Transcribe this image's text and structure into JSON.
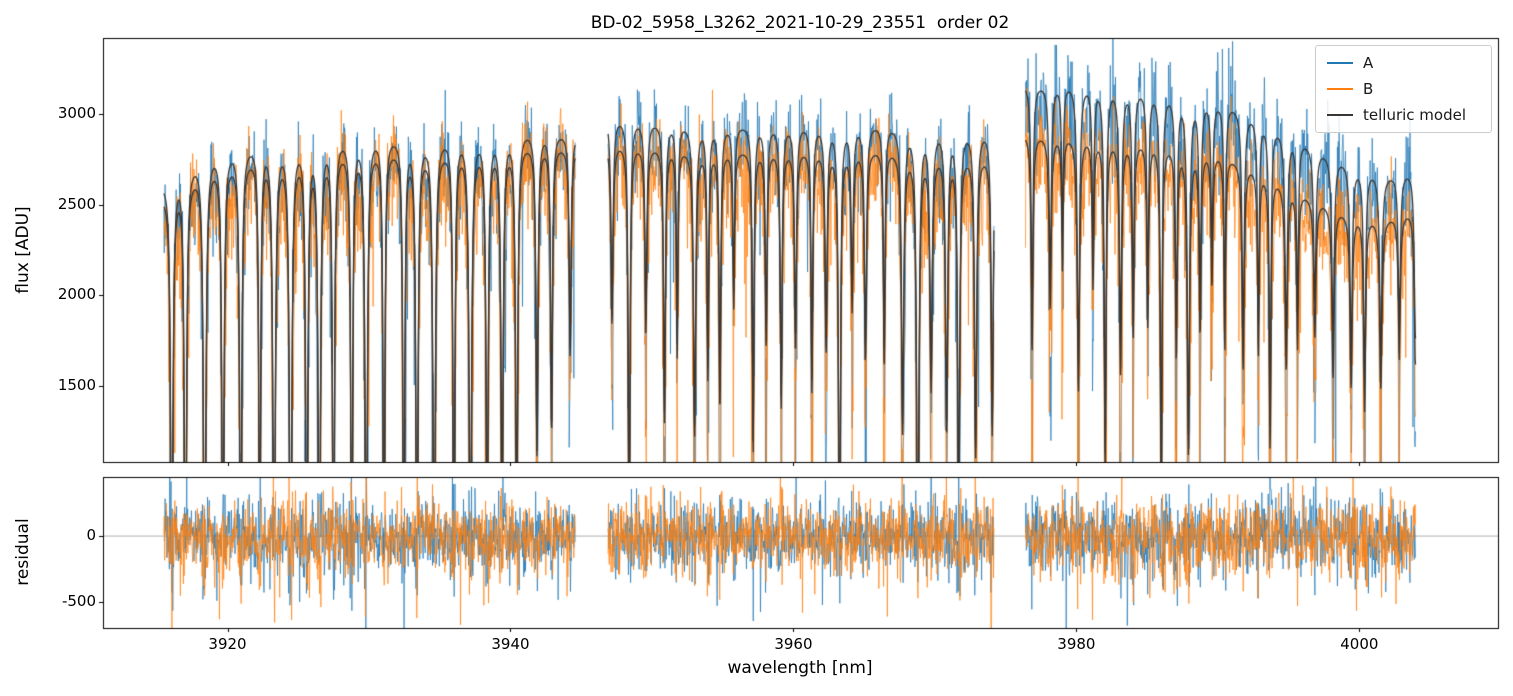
{
  "figure": {
    "background": "#ffffff"
  },
  "chart_data": {
    "type": "line",
    "title": "BD-02_5958_L3262_2021-10-29_23551  order 02",
    "xlabel": "wavelength [nm]",
    "xlim": [
      3911.2,
      4009.8
    ],
    "xticks": [
      3920,
      3940,
      3960,
      3980,
      4000
    ],
    "legend": {
      "position": "upper right",
      "entries": [
        {
          "label": "A",
          "color": "#1f77b4"
        },
        {
          "label": "B",
          "color": "#ff7f0e"
        },
        {
          "label": "telluric model",
          "color": "#3a3633"
        }
      ]
    },
    "panels": [
      {
        "name": "flux",
        "ylabel": "flux [ADU]",
        "ylim": [
          1080,
          3420
        ],
        "yticks": [
          1500,
          2000,
          2500,
          3000
        ]
      },
      {
        "name": "residual",
        "ylabel": "residual",
        "ylim": [
          -700,
          450
        ],
        "yticks": [
          -500,
          0
        ],
        "zero_line": true
      }
    ],
    "series": [
      {
        "name": "A",
        "kind": "noisy observed spectrum",
        "color": "#1f77b4"
      },
      {
        "name": "B",
        "kind": "noisy observed spectrum",
        "color": "#ff7f0e"
      },
      {
        "name": "telluric model",
        "kind": "smooth model, one trace per beam (A upper, B lower)",
        "color": "#3a3633"
      }
    ],
    "segments": [
      {
        "x0": 3915.5,
        "x1": 3944.6,
        "deep_until": 3936.8,
        "taper_min": 0.45,
        "spacing": 1.15,
        "contA": [
          [
            3915.5,
            2640
          ],
          [
            3917,
            2740
          ],
          [
            3919,
            2820
          ],
          [
            3922,
            2860
          ],
          [
            3926,
            2885
          ],
          [
            3930,
            2905
          ],
          [
            3934,
            2890
          ],
          [
            3938,
            2915
          ],
          [
            3941,
            2930
          ],
          [
            3944.6,
            2900
          ]
        ],
        "contB_offset": -75,
        "sigmaA": 125,
        "sigmaB": 135,
        "rsigma": 115
      },
      {
        "x0": 3946.9,
        "x1": 3974.2,
        "spacing": 1.1,
        "base_d": [
          0.3,
          0.6
        ],
        "deep_prob": 0.28,
        "deep_d": [
          0.75,
          1.0
        ],
        "contA": [
          [
            3946.9,
            3000
          ],
          [
            3950,
            2975
          ],
          [
            3955,
            2950
          ],
          [
            3960,
            2958
          ],
          [
            3965,
            2962
          ],
          [
            3970,
            2950
          ],
          [
            3974.2,
            2928
          ]
        ],
        "contB_offset": -140,
        "sigmaA": 130,
        "sigmaB": 140,
        "rsigma": 120
      },
      {
        "x0": 3976.4,
        "x1": 4004.0,
        "spacing": 1.05,
        "base_d": [
          0.25,
          0.5
        ],
        "deep_prob": 0.2,
        "deep_d": [
          0.55,
          0.85
        ],
        "contA": [
          [
            3976.4,
            3170
          ],
          [
            3980,
            3185
          ],
          [
            3984,
            3160
          ],
          [
            3988,
            3120
          ],
          [
            3991,
            3060
          ],
          [
            3994,
            2950
          ],
          [
            3997,
            2820
          ],
          [
            4000,
            2720
          ],
          [
            4002,
            2675
          ],
          [
            4004,
            2700
          ]
        ],
        "contB": [
          [
            3976.4,
            2895
          ],
          [
            3981,
            2890
          ],
          [
            3986,
            2858
          ],
          [
            3990,
            2800
          ],
          [
            3993,
            2705
          ],
          [
            3996,
            2575
          ],
          [
            3999,
            2470
          ],
          [
            4001.5,
            2430
          ],
          [
            4004,
            2480
          ]
        ],
        "sigmaA": 165,
        "sigmaB": 148,
        "rsigma": 130
      }
    ],
    "render": {
      "seed": 42,
      "dx": 0.03
    }
  }
}
